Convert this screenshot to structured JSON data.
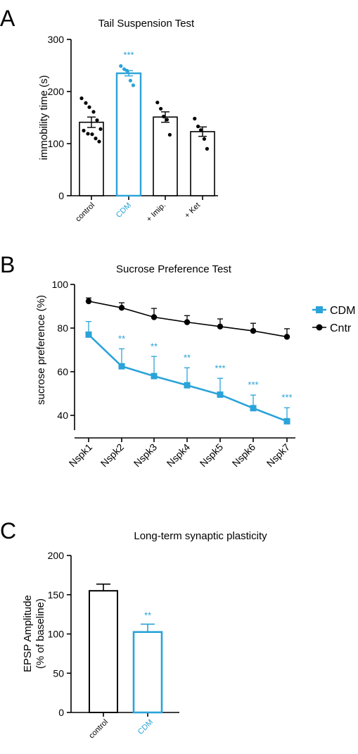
{
  "colors": {
    "accent": "#2aa3d8",
    "base": "#000000"
  },
  "chart_data": [
    {
      "panel": "A",
      "type": "bar",
      "title": "Tail Suspension Test",
      "xlabel": "",
      "ylabel": "immobility time (s)",
      "ylim": [
        0,
        300
      ],
      "yticks": [
        0,
        100,
        200,
        300
      ],
      "categories": [
        "control",
        "CDM",
        "+ Imip.",
        "+ Ket"
      ],
      "category_colors": [
        "#000000",
        "#2aa3d8",
        "#000000",
        "#000000"
      ],
      "values": [
        141,
        235,
        151,
        123
      ],
      "errors": [
        10,
        5,
        10,
        9
      ],
      "significance": [
        "",
        "***",
        "",
        ""
      ],
      "points": [
        [
          187,
          178,
          170,
          161,
          145,
          128,
          125,
          119,
          118,
          110,
          104
        ],
        [
          249,
          243,
          240,
          221,
          212
        ],
        [
          179,
          167,
          152,
          146,
          117
        ],
        [
          148,
          133,
          126,
          109,
          90
        ]
      ],
      "grid": false
    },
    {
      "panel": "B",
      "type": "line",
      "title": "Sucrose Preference Test",
      "xlabel": "",
      "ylabel": "sucrose preference (%)",
      "ylim": [
        34,
        100
      ],
      "yticks": [
        40,
        60,
        80,
        100
      ],
      "categories": [
        "Nspk1",
        "Nspk2",
        "Nspk3",
        "Nspk4",
        "Nspk5",
        "Nspk6",
        "Nspk7"
      ],
      "series": [
        {
          "name": "CDM",
          "color": "#2aa3d8",
          "marker": "square",
          "values": [
            77,
            62.5,
            58,
            53.8,
            49.5,
            43.3,
            37.3
          ],
          "errors": [
            6,
            8,
            9,
            8,
            7.5,
            6,
            6.2
          ],
          "significance": [
            "",
            "**",
            "**",
            "**",
            "***",
            "***",
            "***"
          ]
        },
        {
          "name": "Cntr",
          "color": "#000000",
          "marker": "circle",
          "values": [
            92.3,
            89.3,
            85,
            82.7,
            80.7,
            78.7,
            76
          ],
          "errors": [
            1.5,
            2.3,
            4,
            3,
            3.5,
            3.5,
            3.7
          ]
        }
      ],
      "legend": "right",
      "grid": false
    },
    {
      "panel": "C",
      "type": "bar",
      "title": "Long-term synaptic plasticity",
      "xlabel": "",
      "ylabel": [
        "EPSP Amplitude",
        "(% of baseline)"
      ],
      "ylim": [
        0,
        200
      ],
      "yticks": [
        0,
        50,
        100,
        150,
        200
      ],
      "categories": [
        "control",
        "CDM"
      ],
      "category_colors": [
        "#000000",
        "#2aa3d8"
      ],
      "values": [
        155,
        102.5
      ],
      "errors": [
        8.5,
        10
      ],
      "significance": [
        "",
        "**"
      ],
      "grid": false
    }
  ]
}
